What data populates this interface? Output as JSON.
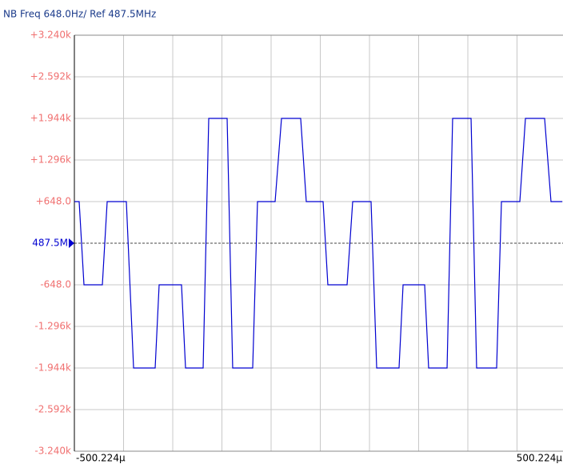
{
  "chart_data": {
    "type": "line",
    "title": "NB Freq 648.0Hz/ Ref 487.5MHz",
    "x": [
      -500.2,
      -490.5,
      -480.7,
      -443.3,
      -433.5,
      -394.5,
      -379.8,
      -335.9,
      -327.8,
      -282.3,
      -274.1,
      -238.3,
      -226.9,
      -189.5,
      -178.2,
      -137.5,
      -127.7,
      -91.9,
      -78.9,
      -39.9,
      -28.5,
      5.7,
      15.4,
      54.5,
      65.9,
      103.3,
      114.7,
      160.2,
      168.4,
      212.3,
      220.4,
      257.9,
      269.2,
      306.7,
      318.0,
      358.7,
      368.5,
      405.9,
      417.3,
      456.3,
      469.3,
      492.1
    ],
    "series": [
      {
        "color": "#0000d0",
        "values": [
          648,
          648,
          -648,
          -648,
          648,
          648,
          -1944,
          -1944,
          -648,
          -648,
          -1944,
          -1944,
          1944,
          1944,
          -1944,
          -1944,
          648,
          648,
          1944,
          1944,
          648,
          648,
          -648,
          -648,
          648,
          648,
          -1944,
          -1944,
          -648,
          -648,
          -1944,
          -1944,
          1944,
          1944,
          -1944,
          -1944,
          648,
          648,
          1944,
          1944,
          648,
          648
        ]
      }
    ],
    "xlim": [
      -500.224,
      500.224
    ],
    "xticks": [
      {
        "value": -500.224,
        "label": "-500.224µ"
      },
      {
        "value": 500.224,
        "label": "500.224µ"
      }
    ],
    "ylim": [
      -3240,
      3240
    ],
    "yticks": [
      {
        "value": 3240,
        "label": "+3.240k"
      },
      {
        "value": 2592,
        "label": "+2.592k"
      },
      {
        "value": 1944,
        "label": "+1.944k"
      },
      {
        "value": 1296,
        "label": "+1.296k"
      },
      {
        "value": 648,
        "label": "+648.0"
      },
      {
        "value": 0,
        "label": "487.5M"
      },
      {
        "value": -648,
        "label": "-648.0"
      },
      {
        "value": -1296,
        "label": "-1.296k"
      },
      {
        "value": -1944,
        "label": "-1.944k"
      },
      {
        "value": -2592,
        "label": "-2.592k"
      },
      {
        "value": -3240,
        "label": "-3.240k"
      }
    ],
    "reference_level": 0,
    "grid": true,
    "x_grid_divisions": 10
  }
}
